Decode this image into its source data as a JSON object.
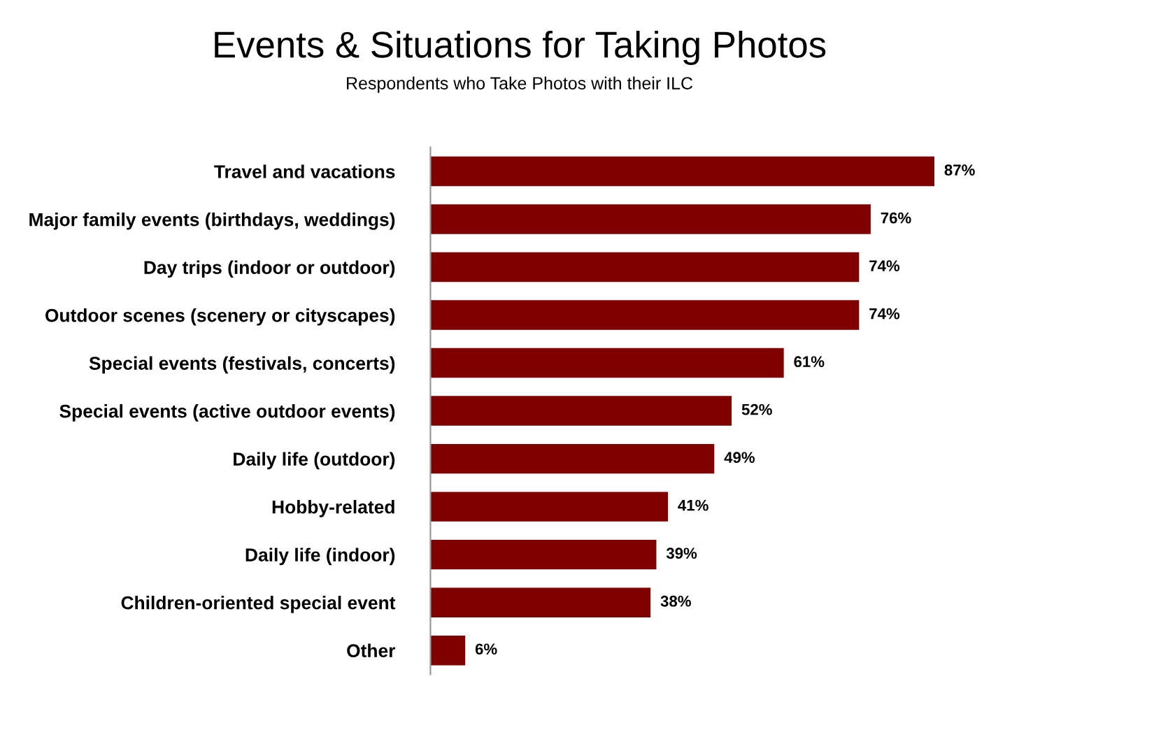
{
  "chart_data": {
    "type": "bar",
    "orientation": "horizontal",
    "title": "Events & Situations for Taking Photos",
    "subtitle": "Respondents who Take Photos with their ILC",
    "categories": [
      "Travel and vacations",
      "Major family events (birthdays, weddings)",
      "Day trips (indoor or outdoor)",
      "Outdoor scenes (scenery or cityscapes)",
      "Special events (festivals, concerts)",
      "Special events (active outdoor events)",
      "Daily life (outdoor)",
      "Hobby-related",
      "Daily life (indoor)",
      "Children-oriented special event",
      "Other"
    ],
    "values": [
      87,
      76,
      74,
      74,
      61,
      52,
      49,
      41,
      39,
      38,
      6
    ],
    "value_labels": [
      "87%",
      "76%",
      "74%",
      "74%",
      "61%",
      "52%",
      "49%",
      "41%",
      "39%",
      "38%",
      "6%"
    ],
    "color": "#800000",
    "grid": false,
    "legend": false
  }
}
